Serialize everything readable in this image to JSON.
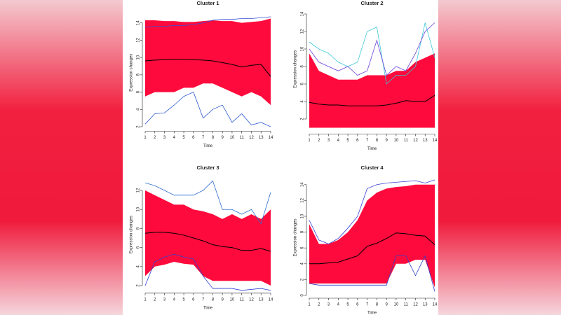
{
  "chart_data": [
    {
      "type": "line",
      "title": "Cluster 1",
      "xlabel": "Time",
      "ylabel": "Expression changes",
      "x": [
        1,
        2,
        3,
        4,
        5,
        6,
        7,
        8,
        9,
        10,
        11,
        12,
        13,
        14
      ],
      "xlim": [
        1,
        14
      ],
      "xticks": [
        1,
        2,
        3,
        4,
        5,
        6,
        7,
        8,
        9,
        10,
        11,
        12,
        13,
        14
      ],
      "ylim": [
        1.8,
        14.7
      ],
      "yticks": [
        2,
        4,
        6,
        8,
        10,
        12,
        14
      ],
      "band": {
        "color": "#ff0a3c",
        "upper": [
          14.3,
          14.3,
          14.2,
          14.2,
          14.1,
          14.1,
          14.2,
          14.3,
          14.2,
          14.2,
          14.0,
          14.1,
          14.2,
          14.5
        ],
        "lower": [
          5.5,
          6,
          6,
          6,
          6.5,
          6.5,
          7,
          7,
          6.5,
          6,
          5.5,
          6,
          5.5,
          4.5
        ]
      },
      "series": [
        {
          "color": "#3a4fd8",
          "values": [
            13.5,
            13.6,
            13.6,
            13.7,
            13.7,
            13.8,
            14.0,
            14.3,
            14.4,
            14.4,
            14.5,
            14.5,
            14.6,
            14.7
          ]
        },
        {
          "color": "#2f5bd0",
          "values": [
            2.3,
            3.5,
            3.6,
            4.5,
            5.5,
            6,
            3,
            4,
            4.5,
            2.5,
            3.5,
            2.2,
            2.5,
            2
          ]
        },
        {
          "color": "#000000",
          "values": [
            9.6,
            9.7,
            9.75,
            9.8,
            9.8,
            9.75,
            9.7,
            9.6,
            9.4,
            9.2,
            8.9,
            9.1,
            9.2,
            7.8
          ]
        }
      ]
    },
    {
      "type": "line",
      "title": "Cluster 2",
      "xlabel": "Time",
      "ylabel": "Expression changes",
      "x": [
        1,
        2,
        3,
        4,
        5,
        6,
        7,
        8,
        9,
        10,
        11,
        12,
        13,
        14
      ],
      "xlim": [
        1,
        14
      ],
      "xticks": [
        1,
        2,
        3,
        4,
        5,
        6,
        7,
        8,
        9,
        10,
        11,
        12,
        13,
        14
      ],
      "ylim": [
        0.6,
        14.8
      ],
      "yticks": [
        2,
        4,
        6,
        8,
        10,
        12,
        14
      ],
      "band": {
        "color": "#ff0a3c",
        "upper": [
          9.5,
          7.5,
          7,
          6.5,
          6.5,
          6.5,
          7,
          7,
          7,
          7.5,
          7.5,
          8.5,
          9,
          9.5
        ],
        "lower": [
          1,
          1,
          1,
          1,
          1,
          1,
          1,
          1,
          1,
          1,
          1,
          1,
          1,
          1
        ]
      },
      "series": [
        {
          "color": "#3ec8d8",
          "values": [
            10.8,
            10,
            9.5,
            8.5,
            8,
            8.5,
            12,
            12.5,
            6,
            7,
            7,
            8,
            13,
            9
          ]
        },
        {
          "color": "#6a3fd8",
          "values": [
            10,
            8.5,
            8,
            7.5,
            8,
            7,
            7.5,
            11,
            7,
            8,
            7.5,
            9.5,
            12,
            13
          ]
        },
        {
          "color": "#000000",
          "values": [
            3.9,
            3.7,
            3.6,
            3.6,
            3.5,
            3.5,
            3.5,
            3.5,
            3.6,
            3.8,
            4.1,
            4.0,
            4.0,
            4.7
          ]
        }
      ]
    },
    {
      "type": "line",
      "title": "Cluster 3",
      "xlabel": "Time",
      "ylabel": "Expression changes",
      "x": [
        1,
        2,
        3,
        4,
        5,
        6,
        7,
        8,
        9,
        10,
        11,
        12,
        13,
        14
      ],
      "xlim": [
        1,
        14
      ],
      "xticks": [
        1,
        2,
        3,
        4,
        5,
        6,
        7,
        8,
        9,
        10,
        11,
        12,
        13,
        14
      ],
      "ylim": [
        1.5,
        13.2
      ],
      "yticks": [
        2,
        4,
        6,
        8,
        10,
        12
      ],
      "band": {
        "color": "#ff0a3c",
        "upper": [
          12,
          11.5,
          11,
          10.5,
          10.5,
          10,
          9.8,
          9.5,
          9,
          9.5,
          9,
          9.5,
          9,
          10
        ],
        "lower": [
          3,
          4,
          4.2,
          4.5,
          4.3,
          4.2,
          3,
          2.5,
          2.5,
          2.5,
          2.5,
          2.5,
          2.5,
          2
        ]
      },
      "series": [
        {
          "color": "#2f6fd0",
          "values": [
            12.8,
            12.5,
            12,
            11.5,
            11.5,
            11.5,
            12,
            13,
            10,
            10,
            9.5,
            10,
            8.5,
            11.8
          ]
        },
        {
          "color": "#3040d0",
          "values": [
            2,
            4.5,
            5,
            5.3,
            5,
            4.8,
            3,
            1.7,
            1.7,
            1.7,
            1.5,
            1.6,
            1.7,
            1.5
          ]
        },
        {
          "color": "#000000",
          "values": [
            7.5,
            7.6,
            7.6,
            7.5,
            7.3,
            7.0,
            6.7,
            6.3,
            6.1,
            6.0,
            5.7,
            5.7,
            5.9,
            5.6
          ]
        }
      ]
    },
    {
      "type": "line",
      "title": "Cluster 4",
      "xlabel": "Time",
      "ylabel": "Expression changes",
      "x": [
        1,
        2,
        3,
        4,
        5,
        6,
        7,
        8,
        9,
        10,
        11,
        12,
        13,
        14
      ],
      "xlim": [
        1,
        14
      ],
      "xticks": [
        1,
        2,
        3,
        4,
        5,
        6,
        7,
        8,
        9,
        10,
        11,
        12,
        13,
        14
      ],
      "ylim": [
        0,
        14.6
      ],
      "yticks": [
        0,
        2,
        4,
        6,
        8,
        10,
        12,
        14
      ],
      "band": {
        "color": "#ff0a3c",
        "upper": [
          9,
          6.5,
          6.5,
          7,
          8,
          9.5,
          12,
          13,
          13.5,
          13.7,
          13.8,
          14,
          14,
          14
        ],
        "lower": [
          1.5,
          1.5,
          1.5,
          1.5,
          1.5,
          1.5,
          1.5,
          1.5,
          1.5,
          4,
          4,
          4.5,
          4.5,
          1
        ]
      },
      "series": [
        {
          "color": "#3a3fd8",
          "values": [
            9.5,
            7,
            6.5,
            7.2,
            8.5,
            10,
            13.5,
            14,
            14.2,
            14.3,
            14.4,
            14.5,
            14.2,
            14.6
          ]
        },
        {
          "color": "#2f3fc8",
          "values": [
            1.5,
            1.3,
            1.3,
            1.3,
            1.3,
            1.3,
            1.3,
            1.3,
            1.3,
            5,
            5,
            2.5,
            5,
            0.5
          ]
        },
        {
          "color": "#000000",
          "values": [
            4,
            4,
            4.1,
            4.2,
            4.6,
            5,
            6.2,
            6.6,
            7.2,
            7.9,
            7.8,
            7.6,
            7.5,
            6.4
          ]
        }
      ]
    }
  ]
}
